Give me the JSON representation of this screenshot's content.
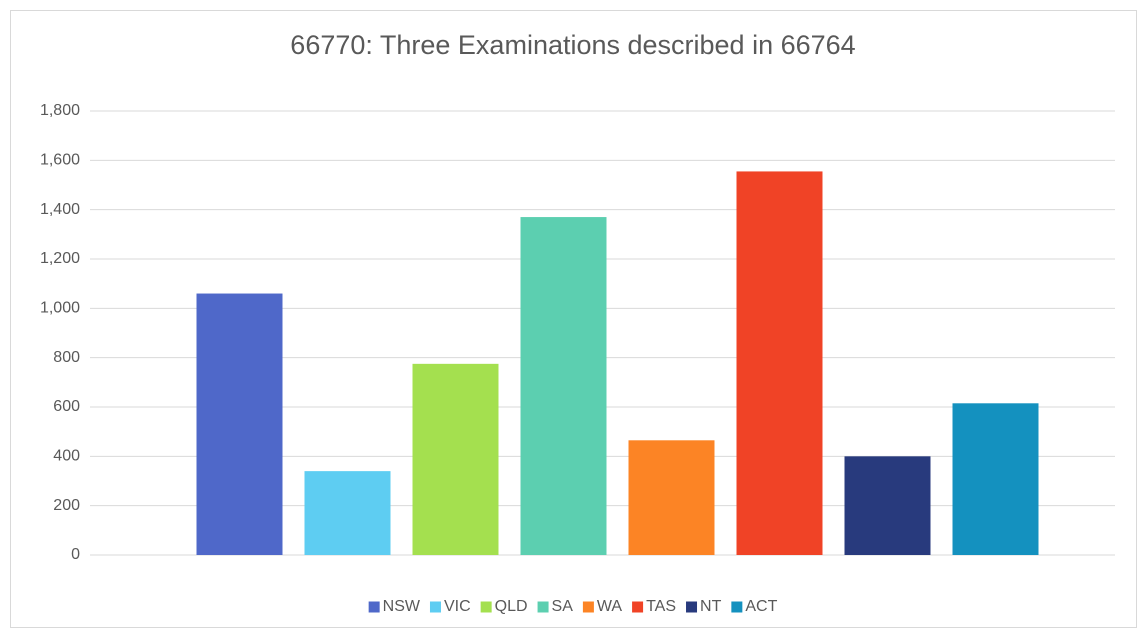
{
  "chart_data": {
    "type": "bar",
    "title": "66770: Three Examinations described in 66764",
    "categories": [
      null
    ],
    "series": [
      {
        "name": "NSW",
        "color": "#4f68c9",
        "values": [
          1060
        ]
      },
      {
        "name": "VIC",
        "color": "#5ecdf2",
        "values": [
          340
        ]
      },
      {
        "name": "QLD",
        "color": "#a4e04f",
        "values": [
          775
        ]
      },
      {
        "name": "SA",
        "color": "#5ccfb0",
        "values": [
          1370
        ]
      },
      {
        "name": "WA",
        "color": "#fc8425",
        "values": [
          465
        ]
      },
      {
        "name": "TAS",
        "color": "#f04326",
        "values": [
          1555
        ]
      },
      {
        "name": "NT",
        "color": "#283a7d",
        "values": [
          400
        ]
      },
      {
        "name": "ACT",
        "color": "#1491bf",
        "values": [
          615
        ]
      }
    ],
    "ylim": [
      0,
      1800
    ],
    "yticks": [
      0,
      200,
      400,
      600,
      800,
      {
        "value": 1000,
        "label": "1,000"
      },
      {
        "value": 1200,
        "label": "1,200"
      },
      {
        "value": 1400,
        "label": "1,400"
      },
      {
        "value": 1600,
        "label": "1,600"
      },
      {
        "value": 1800,
        "label": "1,800"
      }
    ],
    "grid": true,
    "legend": "bottom"
  }
}
